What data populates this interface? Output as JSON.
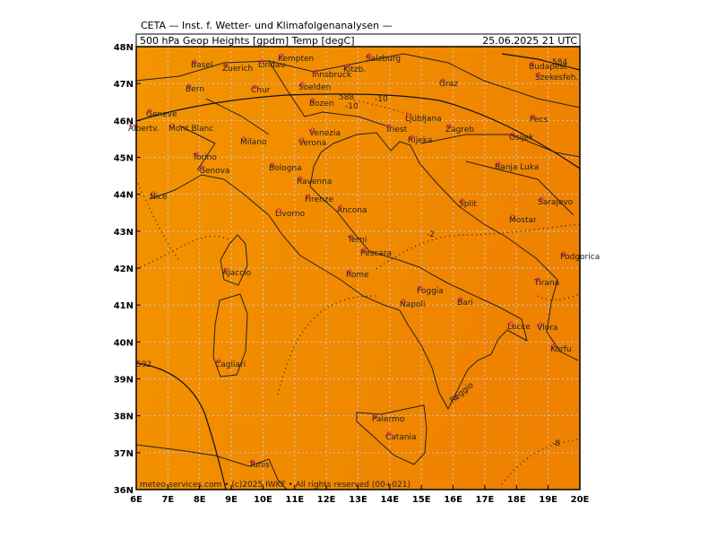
{
  "header": {
    "title": "CETA — Inst. f. Wetter- und Klimafolgenanalysen —",
    "field": "500 hPa Geop Heights [gpdm] Temp [degC]",
    "valid": "25.06.2025 21 UTC"
  },
  "map": {
    "lonticks": [
      {
        "value": 6,
        "label": "6E"
      },
      {
        "value": 7,
        "label": "7E"
      },
      {
        "value": 8,
        "label": "8E"
      },
      {
        "value": 9,
        "label": "9E"
      },
      {
        "value": 10,
        "label": "10E"
      },
      {
        "value": 11,
        "label": "11E"
      },
      {
        "value": 12,
        "label": "12E"
      },
      {
        "value": 13,
        "label": "13E"
      },
      {
        "value": 14,
        "label": "14E"
      },
      {
        "value": 15,
        "label": "15E"
      },
      {
        "value": 16,
        "label": "16E"
      },
      {
        "value": 17,
        "label": "17E"
      },
      {
        "value": 18,
        "label": "18E"
      },
      {
        "value": 19,
        "label": "19E"
      },
      {
        "value": 20,
        "label": "20E"
      }
    ],
    "latticks": [
      {
        "value": 36,
        "label": "36N"
      },
      {
        "value": 37,
        "label": "37N"
      },
      {
        "value": 38,
        "label": "38N"
      },
      {
        "value": 39,
        "label": "39N"
      },
      {
        "value": 40,
        "label": "40N"
      },
      {
        "value": 41,
        "label": "41N"
      },
      {
        "value": 42,
        "label": "42N"
      },
      {
        "value": 43,
        "label": "43N"
      },
      {
        "value": 44,
        "label": "44N"
      },
      {
        "value": 45,
        "label": "45N"
      },
      {
        "value": 46,
        "label": "46N"
      },
      {
        "value": 47,
        "label": "47N"
      },
      {
        "value": 48,
        "label": "48N"
      }
    ],
    "lonlim": [
      6,
      20
    ],
    "latlim": [
      36,
      48
    ],
    "cities": [
      "Basel",
      "Zuerich",
      "Lindau",
      "Kempten",
      "Salzburg",
      "Bern",
      "Chur",
      "Innsbruck",
      "Soelden",
      "Kitzb.",
      "Graz",
      "Budapest",
      "Szekesfeh.",
      "Geneve",
      "Bozen",
      "Pecs",
      "Albertv.",
      "Mont Blanc",
      "Milano",
      "Verona",
      "Venezia",
      "Triest",
      "Ljubljana",
      "Zagreb",
      "Rijeka",
      "Osijek",
      "Torino",
      "Genova",
      "Bologna",
      "Ravenna",
      "Banja Luka",
      "Nice",
      "Firenze",
      "Livorno",
      "Ancona",
      "Split",
      "Sarajevo",
      "Mostar",
      "Podgorica",
      "Terni",
      "Pescara",
      "Ajaccio",
      "Rome",
      "Tirana",
      "Foggia",
      "Bari",
      "Napoli",
      "Lecce",
      "Vlora",
      "Korfu",
      "Cagliari",
      "Palermo",
      "Catania",
      "Tunis",
      "Reggio"
    ],
    "contour_labels": [
      "588",
      "-10",
      "-10",
      "-2",
      "592",
      "584",
      "-8"
    ]
  },
  "footer": "meteo-services.com • (c)2025 IWKF • All rights reserved (00+021)"
}
